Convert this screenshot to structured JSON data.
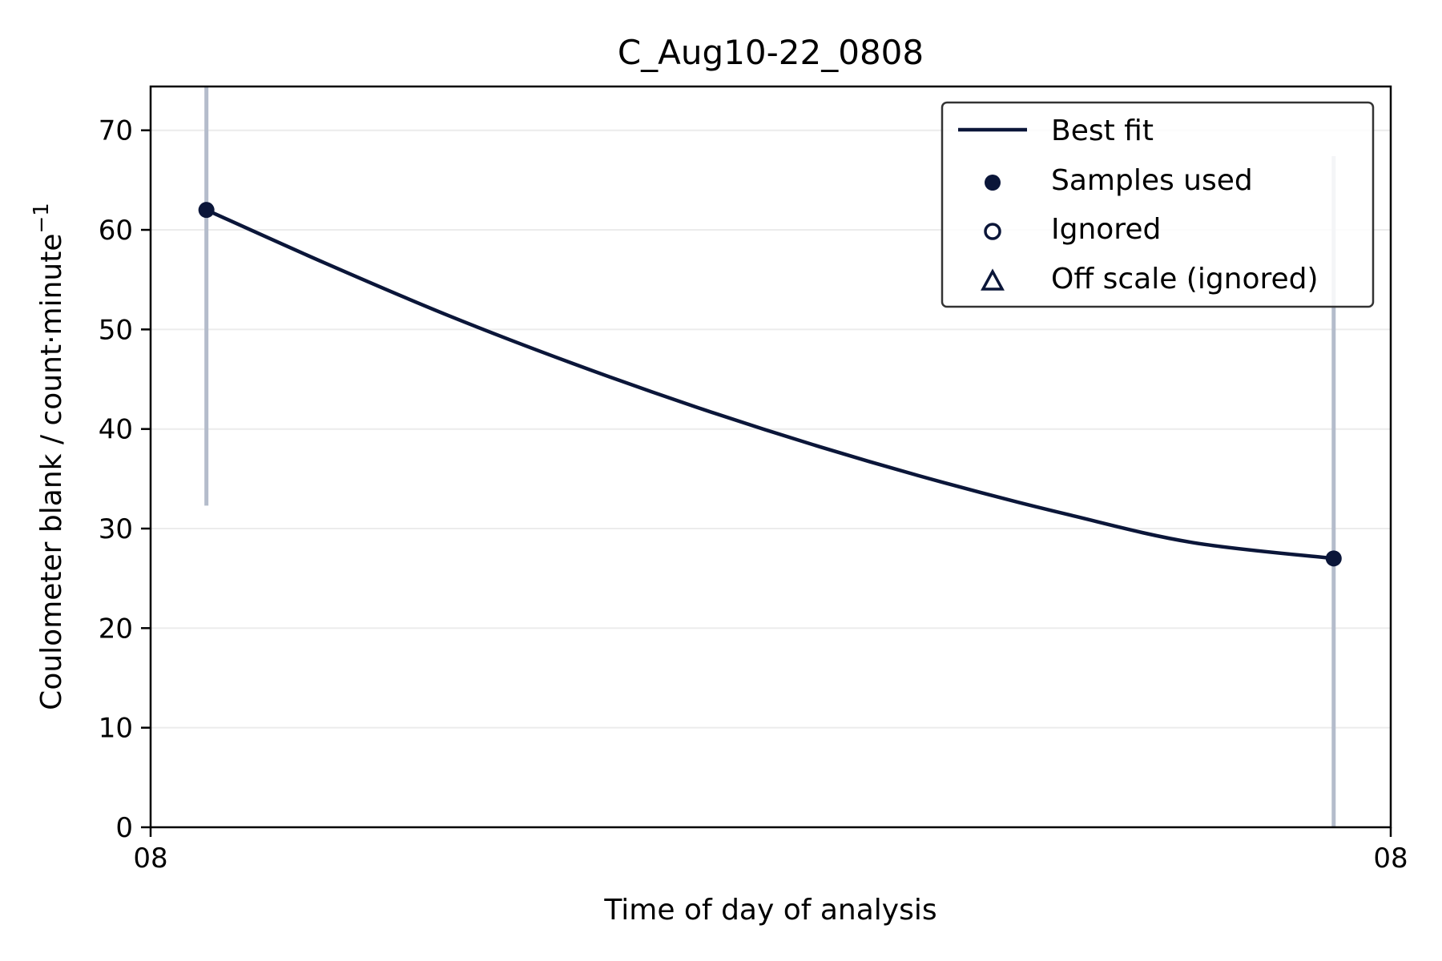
{
  "chart_data": {
    "type": "line",
    "title": "C_Aug10-22_0808",
    "xlabel": "Time of day of analysis",
    "ylabel_main": "Coulometer blank / count·minute",
    "ylabel_exponent": "−1",
    "xlim": [
      0,
      1
    ],
    "ylim": [
      0,
      74.4
    ],
    "x_ticks": [
      0,
      1
    ],
    "x_tick_labels": [
      "08",
      "08"
    ],
    "y_ticks": [
      0,
      10,
      20,
      30,
      40,
      50,
      60,
      70
    ],
    "grid": "horizontal",
    "legend_position": "top-right",
    "colors": {
      "series": "#0b1639",
      "errorbar": "#b4bccb",
      "grid": "#ececec"
    },
    "series": [
      {
        "name": "Best fit",
        "kind": "line",
        "x": [
          0.045,
          0.14,
          0.24,
          0.34,
          0.44,
          0.54,
          0.64,
          0.74,
          0.84,
          0.954
        ],
        "y": [
          62.0,
          56.7,
          51.4,
          46.6,
          42.2,
          38.2,
          34.6,
          31.4,
          28.6,
          27.0
        ]
      },
      {
        "name": "Samples used",
        "kind": "filled-marker",
        "x": [
          0.045,
          0.954
        ],
        "y": [
          62.0,
          27.0
        ],
        "err_low": [
          32.3,
          0
        ],
        "err_high": [
          74.4,
          67.4
        ]
      },
      {
        "name": "Ignored",
        "kind": "open-marker",
        "x": [],
        "y": []
      },
      {
        "name": "Off scale (ignored)",
        "kind": "triangle-marker",
        "x": [],
        "y": []
      }
    ]
  }
}
